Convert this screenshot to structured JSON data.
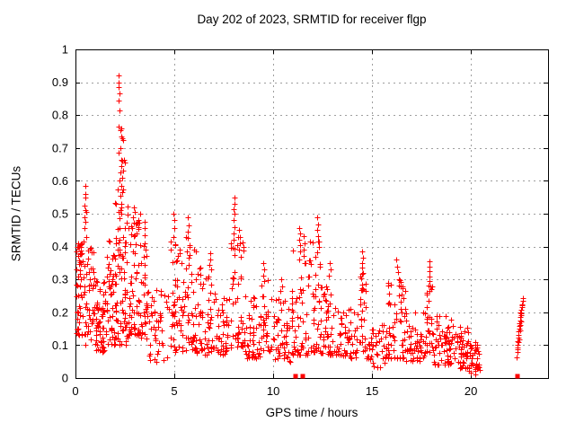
{
  "chart_data": {
    "type": "scatter",
    "title": "Day 202 of 2023, SRMTID for receiver flgp",
    "xlabel": "GPS time / hours",
    "ylabel": "SRMTID / TECUs",
    "xlim": [
      0,
      23.9
    ],
    "ylim": [
      0,
      1
    ],
    "xticks": [
      0,
      5,
      10,
      15,
      20
    ],
    "yticks": [
      0,
      0.1,
      0.2,
      0.3,
      0.4,
      0.5,
      0.6,
      0.7,
      0.8,
      0.9,
      1
    ],
    "grid": true,
    "legend": "none",
    "colors": {
      "marker": "#ff0000",
      "axis": "#000000",
      "grid": "#9e9e9e",
      "text": "#000000",
      "background": "#ffffff"
    },
    "series": [
      {
        "name": "SRMTID",
        "marker": "plus",
        "color": "#ff0000",
        "notable_points": [
          [
            0.5,
            0.585
          ],
          [
            0.48,
            0.56
          ],
          [
            0.52,
            0.55
          ],
          [
            0.46,
            0.525
          ],
          [
            0.5,
            0.51
          ],
          [
            0.53,
            0.505
          ],
          [
            0.47,
            0.49
          ],
          [
            0.5,
            0.475
          ],
          [
            0.44,
            0.455
          ],
          [
            0.55,
            0.43
          ],
          [
            0.42,
            0.415
          ],
          [
            2.18,
            0.92
          ],
          [
            2.2,
            0.9
          ],
          [
            2.19,
            0.885
          ],
          [
            2.21,
            0.865
          ],
          [
            2.2,
            0.845
          ],
          [
            2.22,
            0.815
          ],
          [
            2.2,
            0.765
          ],
          [
            2.28,
            0.755
          ],
          [
            2.34,
            0.76
          ],
          [
            2.3,
            0.735
          ],
          [
            2.37,
            0.73
          ],
          [
            2.43,
            0.725
          ],
          [
            2.25,
            0.7
          ],
          [
            2.2,
            0.685
          ],
          [
            2.3,
            0.665
          ],
          [
            2.38,
            0.66
          ],
          [
            2.45,
            0.665
          ],
          [
            2.51,
            0.655
          ],
          [
            2.33,
            0.645
          ],
          [
            2.4,
            0.63
          ],
          [
            2.28,
            0.625
          ],
          [
            2.35,
            0.61
          ],
          [
            2.22,
            0.6
          ],
          [
            2.15,
            0.575
          ],
          [
            2.3,
            0.585
          ],
          [
            2.42,
            0.575
          ],
          [
            2.35,
            0.565
          ],
          [
            2.28,
            0.555
          ],
          [
            2.95,
            0.52
          ],
          [
            3.0,
            0.505
          ],
          [
            2.9,
            0.49
          ],
          [
            3.05,
            0.47
          ],
          [
            2.87,
            0.455
          ],
          [
            3.1,
            0.44
          ],
          [
            3.5,
            0.475
          ],
          [
            3.52,
            0.455
          ],
          [
            3.48,
            0.435
          ],
          [
            3.5,
            0.41
          ],
          [
            3.55,
            0.39
          ],
          [
            3.45,
            0.37
          ],
          [
            3.5,
            0.345
          ],
          [
            3.52,
            0.315
          ],
          [
            3.49,
            0.285
          ],
          [
            4.97,
            0.5
          ],
          [
            5.02,
            0.48
          ],
          [
            5.0,
            0.455
          ],
          [
            4.94,
            0.43
          ],
          [
            5.05,
            0.405
          ],
          [
            5.7,
            0.49
          ],
          [
            5.72,
            0.465
          ],
          [
            5.68,
            0.445
          ],
          [
            5.7,
            0.425
          ],
          [
            5.75,
            0.405
          ],
          [
            5.65,
            0.385
          ],
          [
            5.71,
            0.365
          ],
          [
            5.74,
            0.345
          ],
          [
            6.3,
            0.335
          ],
          [
            6.33,
            0.315
          ],
          [
            6.8,
            0.38
          ],
          [
            6.82,
            0.36
          ],
          [
            6.78,
            0.345
          ],
          [
            6.85,
            0.33
          ],
          [
            6.74,
            0.31
          ],
          [
            8.02,
            0.55
          ],
          [
            8.05,
            0.53
          ],
          [
            8.0,
            0.515
          ],
          [
            8.03,
            0.5
          ],
          [
            8.0,
            0.48
          ],
          [
            8.06,
            0.46
          ],
          [
            7.98,
            0.44
          ],
          [
            8.01,
            0.42
          ],
          [
            8.28,
            0.45
          ],
          [
            8.31,
            0.43
          ],
          [
            8.33,
            0.41
          ],
          [
            8.29,
            0.39
          ],
          [
            8.35,
            0.37
          ],
          [
            9.5,
            0.35
          ],
          [
            9.52,
            0.33
          ],
          [
            9.48,
            0.312
          ],
          [
            9.55,
            0.295
          ],
          [
            10.4,
            0.3
          ],
          [
            10.43,
            0.28
          ],
          [
            10.37,
            0.265
          ],
          [
            11.33,
            0.455
          ],
          [
            11.36,
            0.44
          ],
          [
            11.3,
            0.42
          ],
          [
            11.35,
            0.405
          ],
          [
            11.38,
            0.385
          ],
          [
            11.32,
            0.362
          ],
          [
            11.55,
            0.432
          ],
          [
            11.57,
            0.41
          ],
          [
            11.53,
            0.39
          ],
          [
            11.56,
            0.372
          ],
          [
            11.6,
            0.35
          ],
          [
            12.22,
            0.49
          ],
          [
            12.25,
            0.468
          ],
          [
            12.2,
            0.45
          ],
          [
            12.28,
            0.432
          ],
          [
            12.25,
            0.415
          ],
          [
            12.31,
            0.4
          ],
          [
            12.21,
            0.382
          ],
          [
            12.85,
            0.35
          ],
          [
            12.9,
            0.33
          ],
          [
            12.8,
            0.312
          ],
          [
            14.5,
            0.385
          ],
          [
            14.52,
            0.365
          ],
          [
            14.48,
            0.35
          ],
          [
            14.5,
            0.335
          ],
          [
            14.55,
            0.32
          ],
          [
            14.45,
            0.302
          ],
          [
            14.51,
            0.285
          ],
          [
            14.53,
            0.27
          ],
          [
            16.2,
            0.36
          ],
          [
            16.26,
            0.34
          ],
          [
            16.31,
            0.322
          ],
          [
            16.36,
            0.3
          ],
          [
            17.88,
            0.355
          ],
          [
            17.9,
            0.34
          ],
          [
            17.92,
            0.325
          ],
          [
            17.88,
            0.31
          ],
          [
            17.91,
            0.295
          ],
          [
            17.94,
            0.28
          ],
          [
            17.89,
            0.265
          ],
          [
            22.32,
            0.062
          ],
          [
            22.34,
            0.078
          ],
          [
            22.35,
            0.092
          ],
          [
            22.37,
            0.1
          ],
          [
            22.36,
            0.112
          ],
          [
            22.4,
            0.122
          ],
          [
            22.42,
            0.132
          ],
          [
            22.39,
            0.142
          ],
          [
            22.44,
            0.15
          ],
          [
            22.46,
            0.158
          ],
          [
            22.45,
            0.168
          ],
          [
            22.48,
            0.176
          ],
          [
            22.5,
            0.185
          ],
          [
            22.52,
            0.192
          ],
          [
            22.5,
            0.2
          ],
          [
            22.55,
            0.208
          ],
          [
            22.57,
            0.216
          ],
          [
            22.6,
            0.225
          ],
          [
            22.62,
            0.234
          ],
          [
            22.65,
            0.244
          ],
          [
            22.47,
            0.145
          ],
          [
            22.43,
            0.118
          ],
          [
            22.53,
            0.172
          ],
          [
            22.58,
            0.22
          ],
          [
            22.41,
            0.108
          ],
          [
            22.37,
            0.088
          ],
          [
            22.49,
            0.162
          ],
          [
            22.55,
            0.198
          ]
        ],
        "density_band_fields": [
          "x_start",
          "x_end",
          "y_min",
          "y_max",
          "count",
          "bottom_bias"
        ],
        "density_bands": [
          [
            0.02,
            0.4,
            0.13,
            0.42,
            42,
            1.4
          ],
          [
            0.05,
            0.35,
            0.28,
            0.4,
            14,
            1.0
          ],
          [
            0.4,
            1.0,
            0.1,
            0.4,
            48,
            1.6
          ],
          [
            1.0,
            1.45,
            0.08,
            0.3,
            52,
            1.5
          ],
          [
            1.45,
            2.0,
            0.1,
            0.45,
            52,
            1.7
          ],
          [
            2.0,
            2.65,
            0.1,
            0.55,
            80,
            1.6
          ],
          [
            2.65,
            3.3,
            0.13,
            0.5,
            62,
            1.6
          ],
          [
            3.3,
            3.65,
            0.12,
            0.42,
            26,
            1.4
          ],
          [
            3.65,
            4.75,
            0.05,
            0.27,
            46,
            1.4
          ],
          [
            4.75,
            5.25,
            0.08,
            0.42,
            38,
            1.7
          ],
          [
            5.25,
            6.1,
            0.08,
            0.44,
            56,
            1.8
          ],
          [
            6.1,
            7.1,
            0.07,
            0.34,
            52,
            1.6
          ],
          [
            7.1,
            7.85,
            0.07,
            0.26,
            40,
            1.4
          ],
          [
            7.85,
            8.55,
            0.09,
            0.44,
            50,
            1.7
          ],
          [
            8.55,
            9.35,
            0.06,
            0.25,
            44,
            1.4
          ],
          [
            9.35,
            9.85,
            0.07,
            0.3,
            30,
            1.5
          ],
          [
            9.85,
            10.9,
            0.05,
            0.24,
            50,
            1.4
          ],
          [
            10.9,
            11.75,
            0.07,
            0.4,
            50,
            1.8
          ],
          [
            11.75,
            12.4,
            0.08,
            0.42,
            44,
            1.8
          ],
          [
            12.4,
            13.3,
            0.07,
            0.28,
            50,
            1.5
          ],
          [
            13.3,
            14.35,
            0.06,
            0.21,
            50,
            1.4
          ],
          [
            14.35,
            14.7,
            0.08,
            0.33,
            24,
            1.5
          ],
          [
            14.7,
            15.75,
            0.03,
            0.17,
            46,
            1.3
          ],
          [
            15.75,
            16.7,
            0.06,
            0.3,
            58,
            1.7
          ],
          [
            16.7,
            17.75,
            0.05,
            0.21,
            56,
            1.4
          ],
          [
            17.75,
            18.1,
            0.08,
            0.3,
            26,
            1.5
          ],
          [
            18.1,
            19.3,
            0.04,
            0.19,
            68,
            1.4
          ],
          [
            19.3,
            19.9,
            0.03,
            0.16,
            46,
            1.3
          ],
          [
            19.9,
            20.45,
            0.01,
            0.115,
            40,
            1.2
          ]
        ]
      },
      {
        "name": "zero-flagged",
        "marker": "filled-square",
        "color": "#ff0000",
        "points": [
          [
            11.15,
            0
          ],
          [
            11.5,
            0
          ],
          [
            22.36,
            0
          ]
        ]
      }
    ]
  }
}
